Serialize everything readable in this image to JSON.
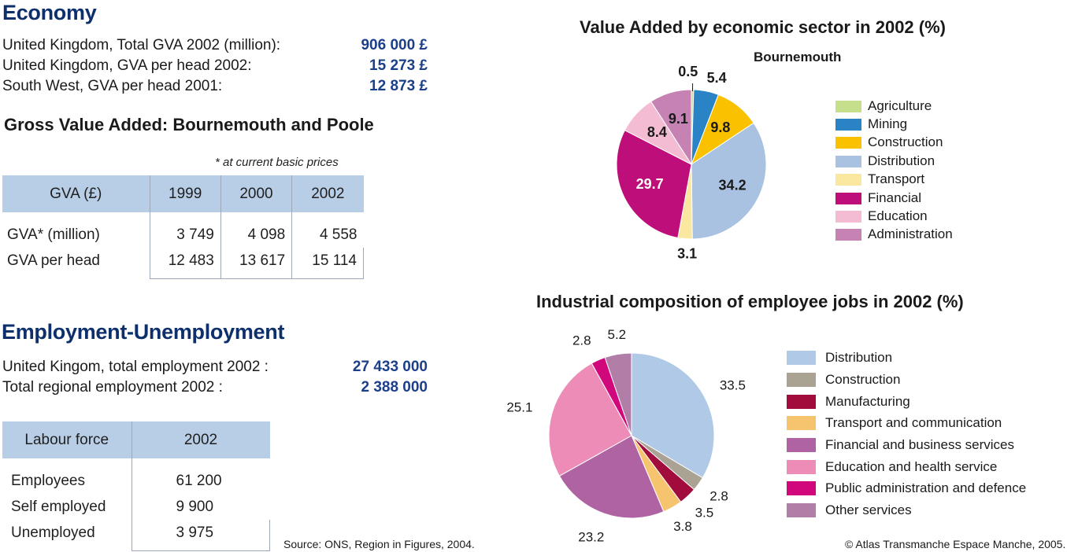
{
  "economy": {
    "title": "Economy",
    "stats": [
      {
        "label": "United Kingdom, Total GVA 2002 (million):",
        "value": "906 000 £"
      },
      {
        "label": "United Kingdom, GVA per head 2002:",
        "value": "15 273 £"
      },
      {
        "label": "South West, GVA per head 2001:",
        "value": "12 873 £"
      }
    ]
  },
  "gva": {
    "title": "Gross Value Added: Bournemouth and Poole",
    "note": "* at current basic prices",
    "headers": [
      "GVA (£)",
      "1999",
      "2000",
      "2002"
    ],
    "rows": [
      {
        "label": "GVA* (million)",
        "values": [
          "3 749",
          "4 098",
          "4 558"
        ]
      },
      {
        "label": "GVA per head",
        "values": [
          "12 483",
          "13 617",
          "15 114"
        ]
      }
    ]
  },
  "employment": {
    "title": "Employment-Unemployment",
    "stats": [
      {
        "label": "United Kingom, total employment 2002 :",
        "value": "27 433 000"
      },
      {
        "label": "Total regional employment 2002 :",
        "value": "2 388 000"
      }
    ],
    "table": {
      "headers": [
        "Labour force",
        "2002"
      ],
      "rows": [
        {
          "label": "Employees",
          "value": "61 200"
        },
        {
          "label": "Self employed",
          "value": "9 900"
        },
        {
          "label": "Unemployed",
          "value": "3 975"
        }
      ]
    }
  },
  "footer": {
    "source": "Source: ONS, Region in Figures, 2004.",
    "copyright": "© Atlas Transmanche Espace Manche, 2005."
  },
  "chart_data": [
    {
      "type": "pie",
      "title": "Value Added by economic sector in 2002 (%)",
      "subtitle": "Bournemouth",
      "categories": [
        "Agriculture",
        "Mining",
        "Construction",
        "Distribution",
        "Transport",
        "Financial",
        "Education",
        "Administration"
      ],
      "values": [
        0.5,
        5.4,
        9.8,
        34.2,
        3.1,
        29.7,
        8.4,
        9.1
      ],
      "labels": [
        "0.5",
        "5.4",
        "9.8",
        "34.2",
        "3.1",
        "29.7",
        "8.4",
        "9.1"
      ],
      "colors": [
        "#c5df8d",
        "#2a83c4",
        "#f9c100",
        "#a9c2e2",
        "#fbe8a0",
        "#bd0e7a",
        "#f4bcd3",
        "#c582b3"
      ],
      "legend_position": "right"
    },
    {
      "type": "pie",
      "title": "Industrial composition of employee jobs in 2002 (%)",
      "categories": [
        "Distribution",
        "Construction",
        "Manufacturing",
        "Transport and communication",
        "Financial and business services",
        "Education and health service",
        "Public administration and defence",
        "Other services"
      ],
      "values": [
        33.5,
        2.8,
        3.5,
        3.8,
        23.2,
        25.1,
        2.8,
        5.2
      ],
      "labels": [
        "33.5",
        "2.8",
        "3.5",
        "3.8",
        "23.2",
        "25.1",
        "2.8",
        "5.2"
      ],
      "colors": [
        "#b0c9e6",
        "#aaa292",
        "#a10c3d",
        "#f6c36f",
        "#b063a2",
        "#ec8cb7",
        "#d1077c",
        "#b07ea6"
      ],
      "legend_position": "right"
    }
  ]
}
